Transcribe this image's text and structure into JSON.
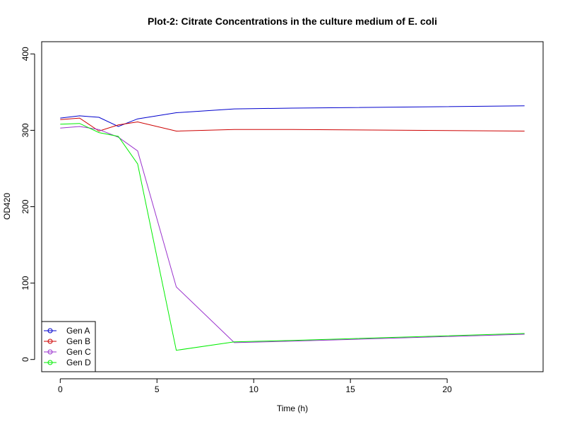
{
  "chart_data": {
    "type": "line",
    "title": "Plot-2: Citrate Concentrations in the culture medium of E. coli",
    "xlabel": "Time (h)",
    "ylabel": "OD420",
    "xlim": [
      -0.96,
      24.96
    ],
    "ylim": [
      -16,
      416
    ],
    "x_ticks": [
      0,
      5,
      10,
      15,
      20
    ],
    "y_ticks": [
      0,
      100,
      200,
      300,
      400
    ],
    "x_tick_labels": [
      "0",
      "5",
      "10",
      "15",
      "20"
    ],
    "y_tick_labels": [
      "0",
      "100",
      "200",
      "300",
      "400"
    ],
    "grid": false,
    "legend_position": "bottom-left",
    "series": [
      {
        "name": "Gen A",
        "color": "#0000CD",
        "x": [
          0,
          1,
          2,
          3,
          4,
          6,
          9,
          12,
          24
        ],
        "values": [
          316,
          319,
          317,
          305,
          315,
          323,
          328,
          329,
          332
        ]
      },
      {
        "name": "Gen B",
        "color": "#CD0000",
        "x": [
          0,
          1,
          2,
          3,
          4,
          6,
          9,
          12,
          24
        ],
        "values": [
          314,
          316,
          299,
          307,
          311,
          299,
          301,
          301,
          299
        ]
      },
      {
        "name": "Gen C",
        "color": "#9A32CD",
        "x": [
          0,
          1,
          2,
          3,
          4,
          6,
          9,
          12,
          24
        ],
        "values": [
          303,
          305,
          301,
          291,
          273,
          95,
          22,
          24,
          33
        ]
      },
      {
        "name": "Gen D",
        "color": "#00EE00",
        "x": [
          0,
          1,
          2,
          3,
          4,
          6,
          9,
          12,
          24
        ],
        "values": [
          308,
          309,
          297,
          292,
          256,
          12,
          23,
          25,
          34
        ]
      }
    ]
  }
}
